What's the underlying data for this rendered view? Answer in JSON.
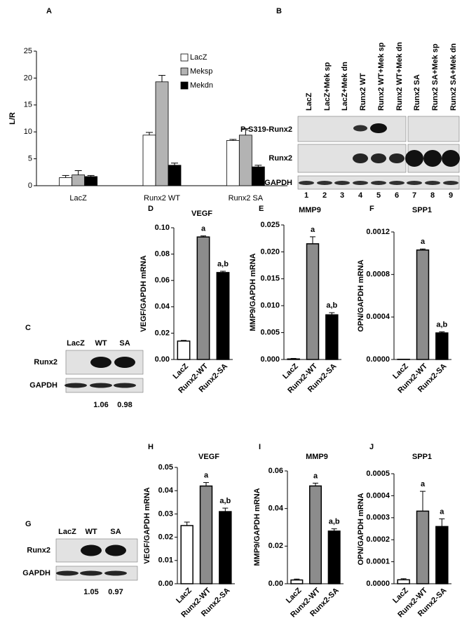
{
  "panel_labels": [
    "A",
    "B",
    "C",
    "D",
    "E",
    "F",
    "G",
    "H",
    "I",
    "J"
  ],
  "chart_data": [
    {
      "type": "grouped_bar",
      "ylabel": "L/R",
      "categories": [
        "LacZ",
        "Runx2 WT",
        "Runx2 SA"
      ],
      "series": [
        {
          "name": "LacZ",
          "color": "#ffffff",
          "values": [
            1.5,
            9.4,
            8.4
          ],
          "errors": [
            0.4,
            0.5,
            0.2
          ]
        },
        {
          "name": "Meksp",
          "color": "#b3b3b3",
          "values": [
            2.0,
            19.3,
            9.4
          ],
          "errors": [
            0.8,
            1.2,
            1.2
          ]
        },
        {
          "name": "Mekdn",
          "color": "#000000",
          "values": [
            1.7,
            3.8,
            3.5
          ],
          "errors": [
            0.2,
            0.4,
            0.3
          ]
        }
      ],
      "ylim": [
        0,
        25
      ],
      "yticks": [
        0,
        5,
        10,
        15,
        20,
        25
      ],
      "legend": "upper right"
    },
    {
      "type": "bar",
      "title": "VEGF",
      "ylabel": "VEGF/GAPDH mRNA",
      "categories": [
        "LacZ",
        "Runx2-WT",
        "Runx2-SA"
      ],
      "colors": [
        "#ffffff",
        "#8c8c8c",
        "#000000"
      ],
      "values": [
        0.014,
        0.093,
        0.066
      ],
      "errors": [
        0.0005,
        0.0008,
        0.001
      ],
      "annotations": [
        null,
        "a",
        "a,b"
      ],
      "ylim": [
        0,
        0.1
      ],
      "yticks": [
        {
          "value": 0,
          "label": "0.00"
        },
        {
          "value": 0.02,
          "label": "0.02"
        },
        {
          "value": 0.04,
          "label": "0.04"
        },
        {
          "value": 0.06,
          "label": "0.06"
        },
        {
          "value": 0.08,
          "label": "0.08"
        },
        {
          "value": 0.1,
          "label": "0.10"
        }
      ]
    },
    {
      "type": "bar",
      "title": "MMP9",
      "ylabel": "MMP9/GAPDH mRNA",
      "categories": [
        "LacZ",
        "Runx2-WT",
        "Runx2-SA"
      ],
      "colors": [
        "#ffffff",
        "#8c8c8c",
        "#000000"
      ],
      "values": [
        0.0001,
        0.0215,
        0.0083
      ],
      "errors": [
        0.0001,
        0.0013,
        0.0004
      ],
      "annotations": [
        null,
        "a",
        "a,b"
      ],
      "ylim": [
        0,
        0.025
      ],
      "yticks": [
        {
          "value": 0,
          "label": "0.000"
        },
        {
          "value": 0.005,
          "label": "0.005"
        },
        {
          "value": 0.01,
          "label": "0.010"
        },
        {
          "value": 0.015,
          "label": "0.015"
        },
        {
          "value": 0.02,
          "label": "0.020"
        },
        {
          "value": 0.025,
          "label": "0.025"
        }
      ]
    },
    {
      "type": "bar",
      "title": "SPP1",
      "ylabel": "OPN/GAPDH mRNA",
      "categories": [
        "LacZ",
        "Runx2-WT",
        "Runx2-SA"
      ],
      "colors": [
        "#ffffff",
        "#8c8c8c",
        "#000000"
      ],
      "values": [
        2e-06,
        0.00103,
        0.00025
      ],
      "errors": [
        1e-06,
        1e-05,
        1e-05
      ],
      "annotations": [
        null,
        "a",
        "a,b"
      ],
      "ylim": [
        0,
        0.0012
      ],
      "yticks": [
        {
          "value": 0,
          "label": "0.0000"
        },
        {
          "value": 0.0004,
          "label": "0.0004"
        },
        {
          "value": 0.0008,
          "label": "0.0008"
        },
        {
          "value": 0.0012,
          "label": "0.0012"
        }
      ]
    },
    {
      "type": "bar",
      "title": "VEGF",
      "ylabel": "VEGF/GAPDH mRNA",
      "categories": [
        "LacZ",
        "Runx2-WT",
        "Runx2-SA"
      ],
      "colors": [
        "#ffffff",
        "#8c8c8c",
        "#000000"
      ],
      "values": [
        0.025,
        0.042,
        0.031
      ],
      "errors": [
        0.0015,
        0.0015,
        0.0015
      ],
      "annotations": [
        null,
        "a",
        "a,b"
      ],
      "ylim": [
        0,
        0.05
      ],
      "yticks": [
        {
          "value": 0,
          "label": "0.00"
        },
        {
          "value": 0.01,
          "label": "0.01"
        },
        {
          "value": 0.02,
          "label": "0.02"
        },
        {
          "value": 0.03,
          "label": "0.03"
        },
        {
          "value": 0.04,
          "label": "0.04"
        },
        {
          "value": 0.05,
          "label": "0.05"
        }
      ]
    },
    {
      "type": "bar",
      "title": "MMP9",
      "ylabel": "MMP9/GAPDH mRNA",
      "categories": [
        "LacZ",
        "Runx2-WT",
        "Runx2-SA"
      ],
      "colors": [
        "#ffffff",
        "#8c8c8c",
        "#000000"
      ],
      "values": [
        0.002,
        0.052,
        0.028
      ],
      "errors": [
        0.0005,
        0.0015,
        0.0012
      ],
      "annotations": [
        null,
        "a",
        "a,b"
      ],
      "ylim": [
        0,
        0.06
      ],
      "yticks": [
        {
          "value": 0,
          "label": "0.00"
        },
        {
          "value": 0.02,
          "label": "0.02"
        },
        {
          "value": 0.04,
          "label": "0.04"
        },
        {
          "value": 0.06,
          "label": "0.06"
        }
      ]
    },
    {
      "type": "bar",
      "title": "SPP1",
      "ylabel": "OPN/GAPDH mRNA",
      "categories": [
        "LacZ",
        "Runx2-WT",
        "Runx2-SA"
      ],
      "colors": [
        "#ffffff",
        "#8c8c8c",
        "#000000"
      ],
      "values": [
        1.8e-05,
        0.00033,
        0.00026
      ],
      "errors": [
        5e-06,
        9e-05,
        3.5e-05
      ],
      "annotations": [
        null,
        "a",
        "a"
      ],
      "ylim": [
        0,
        0.0005
      ],
      "yticks": [
        {
          "value": 0,
          "label": "0.0000"
        },
        {
          "value": 0.0001,
          "label": "0.0001"
        },
        {
          "value": 0.0002,
          "label": "0.0002"
        },
        {
          "value": 0.0003,
          "label": "0.0003"
        },
        {
          "value": 0.0004,
          "label": "0.0004"
        },
        {
          "value": 0.0005,
          "label": "0.0005"
        }
      ]
    }
  ],
  "blots": [
    {
      "lanes": [
        "LacZ",
        "LacZ+Mek sp",
        "LacZ+Mek dn",
        "Runx2 WT",
        "Runx2 WT+Mek sp",
        "Runx2 WT+Mek dn",
        "Runx2 SA",
        "Runx2 SA+Mek sp",
        "Runx2 SA+Mek dn"
      ],
      "rows": [
        "P-S319-Runx2",
        "Runx2",
        "GAPDH"
      ],
      "lane_numbers": [
        1,
        2,
        3,
        4,
        5,
        6,
        7,
        8,
        9
      ]
    },
    {
      "lanes": [
        "LacZ",
        "WT",
        "SA"
      ],
      "rows": [
        "Runx2",
        "GAPDH"
      ],
      "quantification": [
        null,
        1.06,
        0.98
      ]
    },
    {
      "lanes": [
        "LacZ",
        "WT",
        "SA"
      ],
      "rows": [
        "Runx2",
        "GAPDH"
      ],
      "quantification": [
        null,
        1.05,
        0.97
      ]
    }
  ]
}
